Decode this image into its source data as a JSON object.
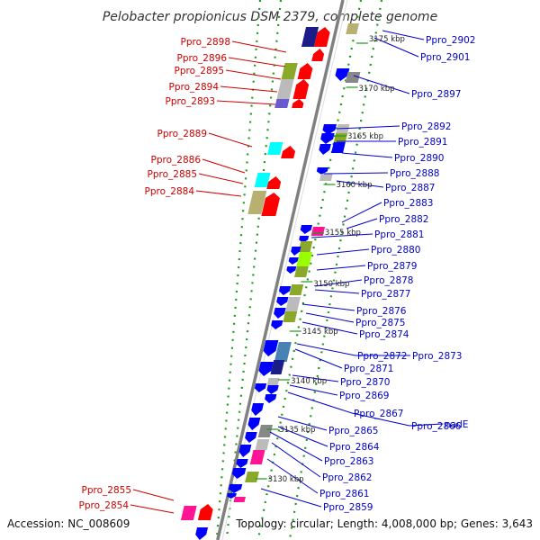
{
  "title": "Pelobacter propionicus DSM 2379, complete genome",
  "footer": {
    "accession": "Accession: NC_008609",
    "topology": "Topology: circular; Length: 4,008,000 bp; Genes: 3,643"
  },
  "colors": {
    "forward_label": "#cc0000",
    "reverse_label": "#0000cc",
    "backbone": "#808080",
    "ruler_dots": "#1e9a1e",
    "cds_red": "#ff0000",
    "cds_blue": "#0000ff",
    "olive": "#8aa829",
    "lime": "#99ff00",
    "cyan": "#00ffff",
    "khaki": "#b8b070",
    "navy": "#1c1c88",
    "slate": "#6a5acd",
    "silver": "#bbbbbb",
    "grey": "#888888",
    "pink": "#ff1493",
    "steel": "#4682b4"
  },
  "kbp_marks": [
    "3175 kbp",
    "3170 kbp",
    "3165 kbp",
    "3160 kbp",
    "3155 kbp",
    "3150 kbp",
    "3145 kbp",
    "3140 kbp",
    "3135 kbp",
    "3130 kbp"
  ],
  "forward_genes": [
    "Ppro_2898",
    "Ppro_2896",
    "Ppro_2895",
    "Ppro_2894",
    "Ppro_2893",
    "Ppro_2889",
    "Ppro_2886",
    "Ppro_2885",
    "Ppro_2884",
    "Ppro_2855",
    "Ppro_2854"
  ],
  "reverse_genes": [
    "Ppro_2902",
    "Ppro_2901",
    "Ppro_2897",
    "Ppro_2892",
    "Ppro_2891",
    "Ppro_2890",
    "Ppro_2888",
    "Ppro_2887",
    "Ppro_2883",
    "Ppro_2882",
    "Ppro_2881",
    "Ppro_2880",
    "Ppro_2879",
    "Ppro_2878",
    "Ppro_2877",
    "Ppro_2876",
    "Ppro_2875",
    "Ppro_2874",
    "Ppro_2872",
    "Ppro_2873",
    "Ppro_2871",
    "Ppro_2870",
    "Ppro_2869",
    "Ppro_2867",
    "Ppro_2866",
    "nadE",
    "Ppro_2865",
    "Ppro_2864",
    "Ppro_2863",
    "Ppro_2862",
    "Ppro_2861",
    "Ppro_2859"
  ]
}
